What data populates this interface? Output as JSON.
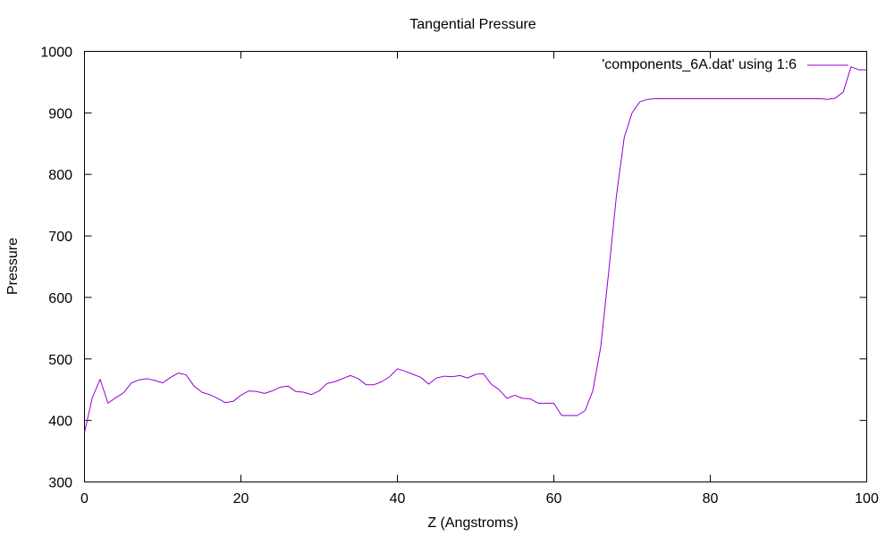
{
  "chart_data": {
    "type": "line",
    "title": "Tangential Pressure",
    "xlabel": "Z (Angstroms)",
    "ylabel": "Pressure",
    "xlim": [
      0,
      100
    ],
    "ylim": [
      300,
      1000
    ],
    "x_ticks": [
      0,
      20,
      40,
      60,
      80,
      100
    ],
    "y_ticks": [
      300,
      400,
      500,
      600,
      700,
      800,
      900,
      1000
    ],
    "grid": false,
    "legend_position": "top-right",
    "series": [
      {
        "name": "'components_6A.dat' using 1:6",
        "color": "#9400d3",
        "x": [
          0,
          1,
          2,
          3,
          4,
          5,
          6,
          7,
          8,
          9,
          10,
          11,
          12,
          13,
          14,
          15,
          16,
          17,
          18,
          19,
          20,
          21,
          22,
          23,
          24,
          25,
          26,
          27,
          28,
          29,
          30,
          31,
          32,
          33,
          34,
          35,
          36,
          37,
          38,
          39,
          40,
          41,
          42,
          43,
          44,
          45,
          46,
          47,
          48,
          49,
          50,
          51,
          52,
          53,
          54,
          55,
          56,
          57,
          58,
          59,
          60,
          61,
          62,
          63,
          64,
          65,
          66,
          67,
          68,
          69,
          70,
          71,
          72,
          73,
          74,
          75,
          76,
          77,
          78,
          79,
          80,
          81,
          82,
          83,
          84,
          85,
          86,
          87,
          88,
          89,
          90,
          91,
          92,
          93,
          94,
          95,
          96,
          97,
          98,
          99,
          100
        ],
        "y": [
          380,
          437,
          467,
          428,
          437,
          445,
          461,
          466,
          468,
          465,
          461,
          470,
          477,
          474,
          456,
          446,
          442,
          436,
          429,
          431,
          441,
          448,
          447,
          444,
          448,
          454,
          456,
          447,
          446,
          442,
          448,
          460,
          463,
          468,
          473,
          468,
          458,
          458,
          463,
          471,
          484,
          480,
          475,
          470,
          459,
          469,
          472,
          471,
          473,
          469,
          475,
          476,
          459,
          450,
          436,
          441,
          436,
          435,
          428,
          428,
          428,
          408,
          408,
          408,
          416,
          449,
          520,
          640,
          765,
          860,
          900,
          918,
          922,
          923,
          923,
          923,
          923,
          923,
          923,
          923,
          923,
          923,
          923,
          923,
          923,
          923,
          923,
          923,
          923,
          923,
          923,
          923,
          923,
          923,
          923,
          922,
          924,
          934,
          975,
          970,
          970
        ]
      }
    ]
  }
}
